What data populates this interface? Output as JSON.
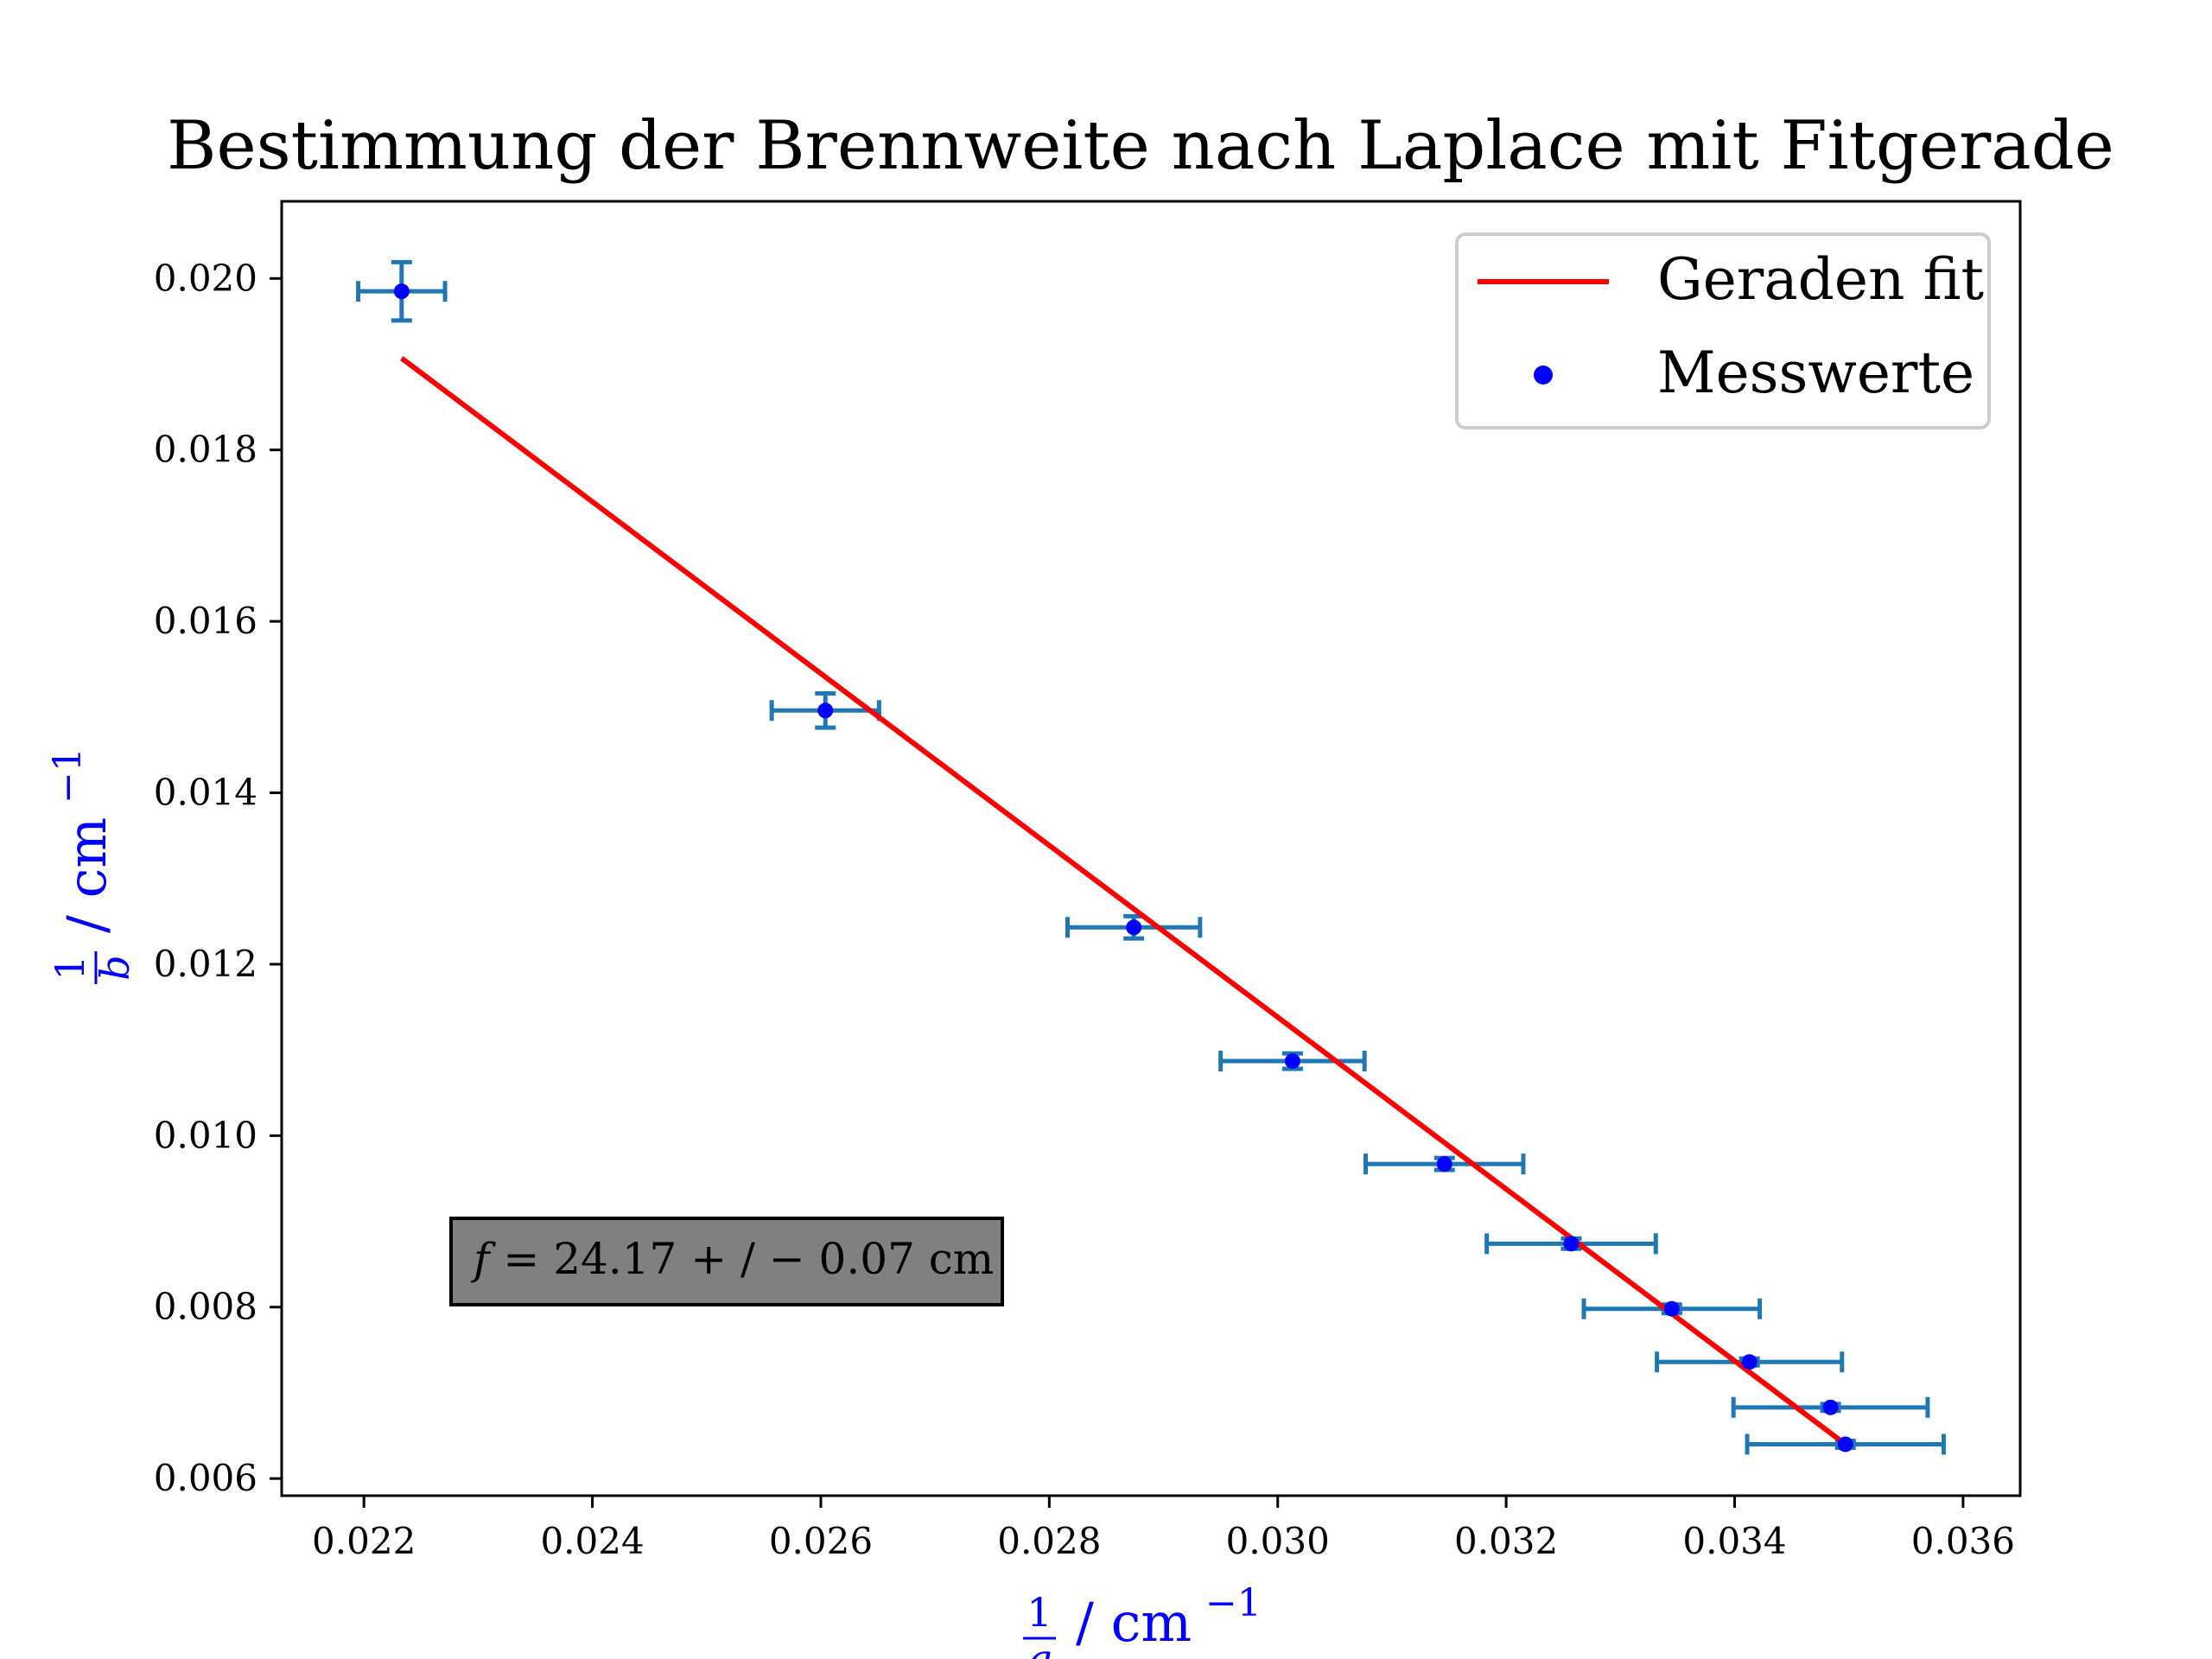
{
  "chart_data": {
    "type": "scatter",
    "title": "Bestimmung der Brennweite nach Laplace mit Fitgerade",
    "xlabel": {
      "frac_num": "1",
      "frac_den": "g",
      "unit": "/ cm",
      "exp": "−1"
    },
    "ylabel": {
      "frac_num": "1",
      "frac_den": "b",
      "unit": "/ cm",
      "exp": "−1"
    },
    "xlim": [
      0.02128,
      0.0365
    ],
    "ylim": [
      0.0058,
      0.0209
    ],
    "xticks": [
      "0.022",
      "0.024",
      "0.026",
      "0.028",
      "0.030",
      "0.032",
      "0.034",
      "0.036"
    ],
    "xtick_values": [
      0.022,
      0.024,
      0.026,
      0.028,
      0.03,
      0.032,
      0.034,
      0.036
    ],
    "yticks": [
      "0.006",
      "0.008",
      "0.010",
      "0.012",
      "0.014",
      "0.016",
      "0.018",
      "0.020"
    ],
    "ytick_values": [
      0.006,
      0.008,
      0.01,
      0.012,
      0.014,
      0.016,
      0.018,
      0.02
    ],
    "grid": false,
    "legend_position": "top-right",
    "series": [
      {
        "name": "Messwerte",
        "kind": "scatter-errorbar",
        "marker_color": "#0000ff",
        "errorbar_color": "#1f77b4",
        "points": [
          {
            "x": 0.02233,
            "y": 0.01985,
            "xerr": 0.00038,
            "yerr": 0.00034
          },
          {
            "x": 0.02604,
            "y": 0.01496,
            "xerr": 0.00047,
            "yerr": 0.0002
          },
          {
            "x": 0.02874,
            "y": 0.01243,
            "xerr": 0.00058,
            "yerr": 0.00013
          },
          {
            "x": 0.03013,
            "y": 0.01087,
            "xerr": 0.00063,
            "yerr": 9e-05
          },
          {
            "x": 0.03146,
            "y": 0.00967,
            "xerr": 0.00069,
            "yerr": 7e-05
          },
          {
            "x": 0.03257,
            "y": 0.00874,
            "xerr": 0.00074,
            "yerr": 6e-05
          },
          {
            "x": 0.03345,
            "y": 0.00798,
            "xerr": 0.00077,
            "yerr": 5e-05
          },
          {
            "x": 0.03413,
            "y": 0.00736,
            "xerr": 0.00081,
            "yerr": 4e-05
          },
          {
            "x": 0.03484,
            "y": 0.00683,
            "xerr": 0.00085,
            "yerr": 4e-05
          },
          {
            "x": 0.03497,
            "y": 0.0064,
            "xerr": 0.00086,
            "yerr": 4e-05
          }
        ]
      },
      {
        "name": "Geraden fit",
        "kind": "line",
        "color": "#ff0000",
        "x": [
          0.02233,
          0.03497
        ],
        "y": [
          0.01907,
          0.0064
        ]
      }
    ],
    "annotation": {
      "text_lhs": "f",
      "text_rhs": " = 24.17 + / − 0.07 cm",
      "x": 0.0253,
      "y": 0.00847,
      "bg_color": "#808080"
    }
  }
}
